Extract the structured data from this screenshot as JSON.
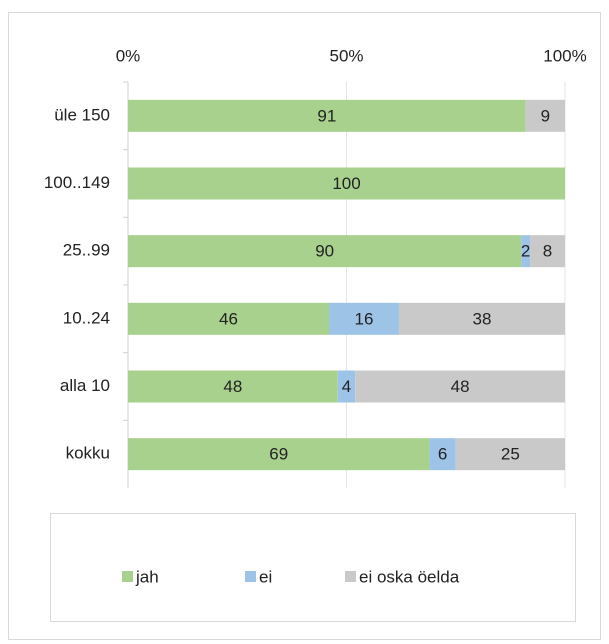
{
  "chart_data": {
    "type": "stacked_bar_horizontal",
    "categories": [
      "üle 150",
      "100..149",
      "25..99",
      "10..24",
      "alla 10",
      "kokku"
    ],
    "series": [
      {
        "name": "jah",
        "color": "#a9d18e",
        "values": [
          91,
          100,
          90,
          46,
          48,
          69
        ]
      },
      {
        "name": "ei",
        "color": "#9dc3e6",
        "values": [
          0,
          0,
          2,
          16,
          4,
          6
        ]
      },
      {
        "name": "ei oska öelda",
        "color": "#c9c9c9",
        "values": [
          9,
          0,
          8,
          38,
          48,
          25
        ]
      }
    ],
    "xlim": [
      0,
      100
    ],
    "xticks": [
      {
        "value": 0,
        "label": "0%"
      },
      {
        "value": 50,
        "label": "50%"
      },
      {
        "value": 100,
        "label": "100%"
      }
    ],
    "grid": true,
    "legend": "bottom"
  }
}
